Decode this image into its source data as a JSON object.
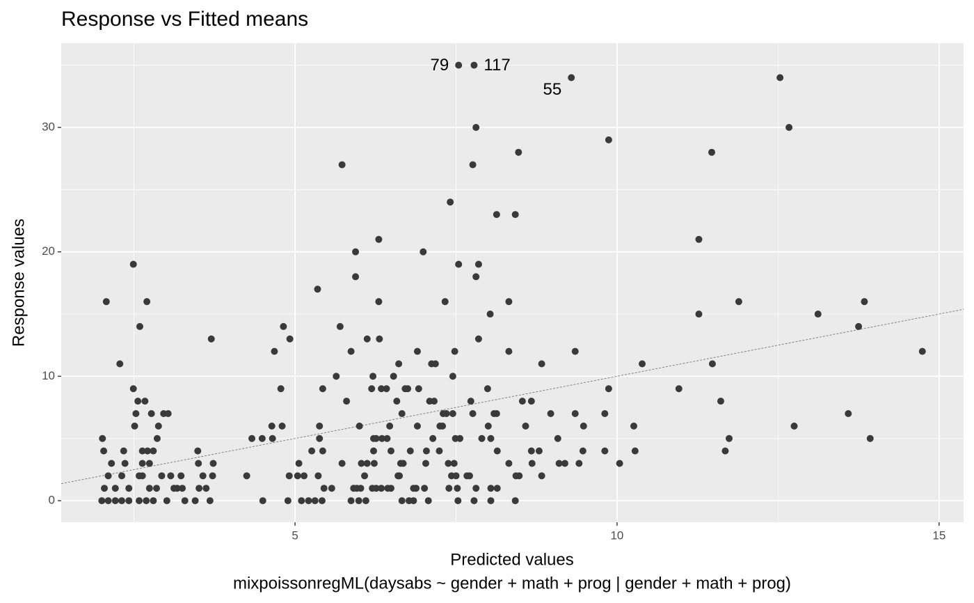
{
  "chart_data": {
    "type": "scatter",
    "title": "Response vs Fitted means",
    "xlabel": "Predicted values",
    "caption": "mixpoissonregML(daysabs ~ gender + math + prog | gender + math + prog)",
    "ylabel": "Response values",
    "xlim": [
      1.37,
      15.38
    ],
    "ylim": [
      -1.73,
      36.77
    ],
    "xticks": [
      5,
      10,
      15
    ],
    "yticks": [
      0,
      10,
      20,
      30
    ],
    "xminor": [
      2.5,
      7.5,
      12.5
    ],
    "yminor": [
      5,
      15,
      25,
      35
    ],
    "grid": true,
    "series": [
      {
        "color": "#3a3a3a",
        "x": [
          2.01,
          2.03,
          2.07,
          2.04,
          2.1,
          2.15,
          2.28,
          2.31,
          2.34,
          2.36,
          2.49,
          2.49,
          2.51,
          2.53,
          2.56,
          2.59,
          2.67,
          2.7,
          2.71,
          2.77,
          2.86,
          2.88,
          2.96,
          3.03,
          2.93,
          3.07,
          3.17,
          3.23,
          3.29,
          3.49,
          3.5,
          3.57,
          3.7,
          3.73,
          3.72,
          3.68,
          2.0,
          2.1,
          2.21,
          2.31,
          2.42,
          2.58,
          2.69,
          2.8,
          3.01,
          3.45,
          2.21,
          2.42,
          2.74,
          2.85,
          3.12,
          3.25,
          3.51,
          3.62,
          2.63,
          2.74,
          2.58,
          2.63,
          2.63,
          2.8,
          4.25,
          4.33,
          4.5,
          4.49,
          4.64,
          4.65,
          4.68,
          4.78,
          4.8,
          4.82,
          4.92,
          4.91,
          4.89,
          5.06,
          5.04,
          5.14,
          5.26,
          5.35,
          5.36,
          5.38,
          5.38,
          5.43,
          5.43,
          5.45,
          5.57,
          5.64,
          5.7,
          5.73,
          5.73,
          5.8,
          5.87,
          5.87,
          5.94,
          5.94,
          5.96,
          6.0,
          6.03,
          6.08,
          6.12,
          6.12,
          6.19,
          6.21,
          6.22,
          6.22,
          6.3,
          6.3,
          6.31,
          6.34,
          6.35,
          6.42,
          6.43,
          6.47,
          6.49,
          6.53,
          6.58,
          6.61,
          6.62,
          6.66,
          6.68,
          6.71,
          6.75,
          6.79,
          6.84,
          6.9,
          6.9,
          6.92,
          6.99,
          7.01,
          7.03,
          7.04,
          7.09,
          7.12,
          7.14,
          7.16,
          7.18,
          7.24,
          7.25,
          7.29,
          7.3,
          7.33,
          7.35,
          7.38,
          7.39,
          7.41,
          7.43,
          7.45,
          7.45,
          7.47,
          7.48,
          7.49,
          7.5,
          7.52,
          7.54,
          7.56,
          5.99,
          6.1,
          6.66,
          6.77,
          6.84,
          7.07,
          7.53,
          5.21,
          5.31,
          5.42,
          5.1,
          5.91,
          6.02,
          6.2,
          6.26,
          6.34,
          6.44,
          6.49,
          6.88,
          6.6,
          6.23,
          6.64,
          6.26,
          7.67,
          7.71,
          7.73,
          7.76,
          7.76,
          7.78,
          7.81,
          7.81,
          7.81,
          7.85,
          7.85,
          7.9,
          7.99,
          8.0,
          8.03,
          8.04,
          8.04,
          8.04,
          8.09,
          8.13,
          8.13,
          8.14,
          8.14,
          8.32,
          8.32,
          8.32,
          8.42,
          8.42,
          8.43,
          8.47,
          8.48,
          8.53,
          8.58,
          8.67,
          8.67,
          8.68,
          8.79,
          8.83,
          8.83,
          8.97,
          9.08,
          9.1,
          9.19,
          9.35,
          9.35,
          9.41,
          9.47,
          9.48,
          9.81,
          9.81,
          9.87,
          9.87,
          10.04,
          10.26,
          10.28,
          10.39,
          10.96,
          11.27,
          11.27,
          11.47,
          11.48,
          11.61,
          11.68,
          11.74,
          11.89,
          12.53,
          12.67,
          12.75,
          13.12,
          13.59,
          13.75,
          13.84,
          13.93,
          14.74
        ],
        "values": [
          5,
          4,
          16,
          1,
          2,
          3,
          11,
          2,
          4,
          3,
          19,
          9,
          6,
          7,
          8,
          14,
          8,
          16,
          4,
          7,
          5,
          6,
          7,
          7,
          2,
          2,
          1,
          2,
          0,
          4,
          3,
          2,
          13,
          3,
          2,
          0,
          0,
          0,
          0,
          0,
          0,
          0,
          0,
          0,
          0,
          0,
          1,
          1,
          1,
          1,
          1,
          1,
          1,
          1,
          3,
          3,
          2,
          2,
          4,
          4,
          2,
          5,
          0,
          5,
          6,
          5,
          12,
          9,
          6,
          14,
          13,
          2,
          0,
          3,
          2,
          2,
          4,
          17,
          2,
          6,
          5,
          9,
          4,
          1,
          1,
          10,
          14,
          27,
          3,
          8,
          12,
          0,
          20,
          18,
          1,
          6,
          3,
          2,
          13,
          3,
          9,
          10,
          5,
          4,
          21,
          16,
          13,
          9,
          5,
          9,
          5,
          6,
          4,
          10,
          8,
          11,
          2,
          7,
          3,
          9,
          9,
          4,
          1,
          12,
          6,
          9,
          20,
          1,
          3,
          4,
          8,
          11,
          5,
          8,
          11,
          4,
          6,
          6,
          7,
          16,
          7,
          3,
          1,
          24,
          2,
          7,
          10,
          3,
          12,
          5,
          2,
          1,
          19,
          5,
          0,
          0,
          0,
          0,
          0,
          0,
          0,
          0,
          0,
          0,
          0,
          1,
          1,
          1,
          1,
          1,
          1,
          1,
          1,
          2,
          3,
          3,
          5,
          2,
          2,
          8,
          27,
          7,
          0,
          30,
          18,
          1,
          19,
          13,
          5,
          9,
          6,
          15,
          5,
          1,
          0,
          7,
          23,
          7,
          4,
          1,
          16,
          12,
          3,
          23,
          0,
          2,
          28,
          2,
          8,
          6,
          8,
          4,
          3,
          4,
          11,
          2,
          7,
          5,
          3,
          3,
          12,
          7,
          3,
          4,
          6,
          7,
          4,
          29,
          9,
          3,
          6,
          4,
          11,
          9,
          21,
          15,
          28,
          11,
          8,
          4,
          5,
          16,
          34,
          30,
          6,
          15,
          7,
          14,
          16,
          5,
          12
        ]
      },
      {
        "color": "#3a3a3a",
        "x": [
          7.54,
          7.78,
          9.29
        ],
        "values": [
          35,
          35,
          34
        ],
        "labels": [
          "79",
          "117",
          "55"
        ]
      }
    ]
  }
}
